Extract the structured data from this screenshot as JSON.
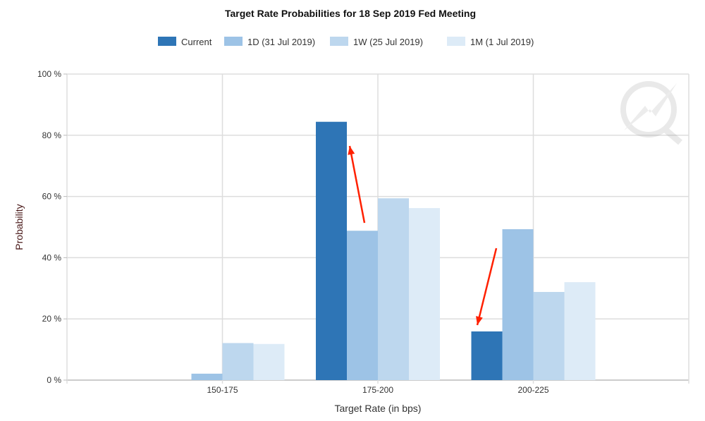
{
  "chart_data": {
    "type": "bar",
    "title": "Target Rate Probabilities for 18 Sep 2019 Fed Meeting",
    "xlabel": "Target Rate (in bps)",
    "ylabel": "Probability",
    "ylim": [
      0,
      100
    ],
    "yticks": [
      "0 %",
      "20 %",
      "40 %",
      "60 %",
      "80 %",
      "100 %"
    ],
    "categories": [
      "150-175",
      "175-200",
      "200-225"
    ],
    "legend_position": "top-center",
    "grid": true,
    "series": [
      {
        "name": "Current",
        "color": "#2e75b6",
        "values": [
          0,
          84.4,
          15.9
        ]
      },
      {
        "name": "1D (31 Jul 2019)",
        "color": "#9dc3e6",
        "values": [
          2.1,
          48.8,
          49.3
        ]
      },
      {
        "name": "1W (25 Jul 2019)",
        "color": "#bdd7ee",
        "values": [
          12.1,
          59.4,
          28.8
        ]
      },
      {
        "name": "1M (1 Jul 2019)",
        "color": "#ddebf7",
        "values": [
          11.8,
          56.2,
          32.0
        ]
      }
    ],
    "annotations": [
      {
        "type": "arrow",
        "color": "#ff2000",
        "meaning": "up",
        "category": "175-200"
      },
      {
        "type": "arrow",
        "color": "#ff2000",
        "meaning": "down",
        "category": "200-225"
      }
    ]
  }
}
